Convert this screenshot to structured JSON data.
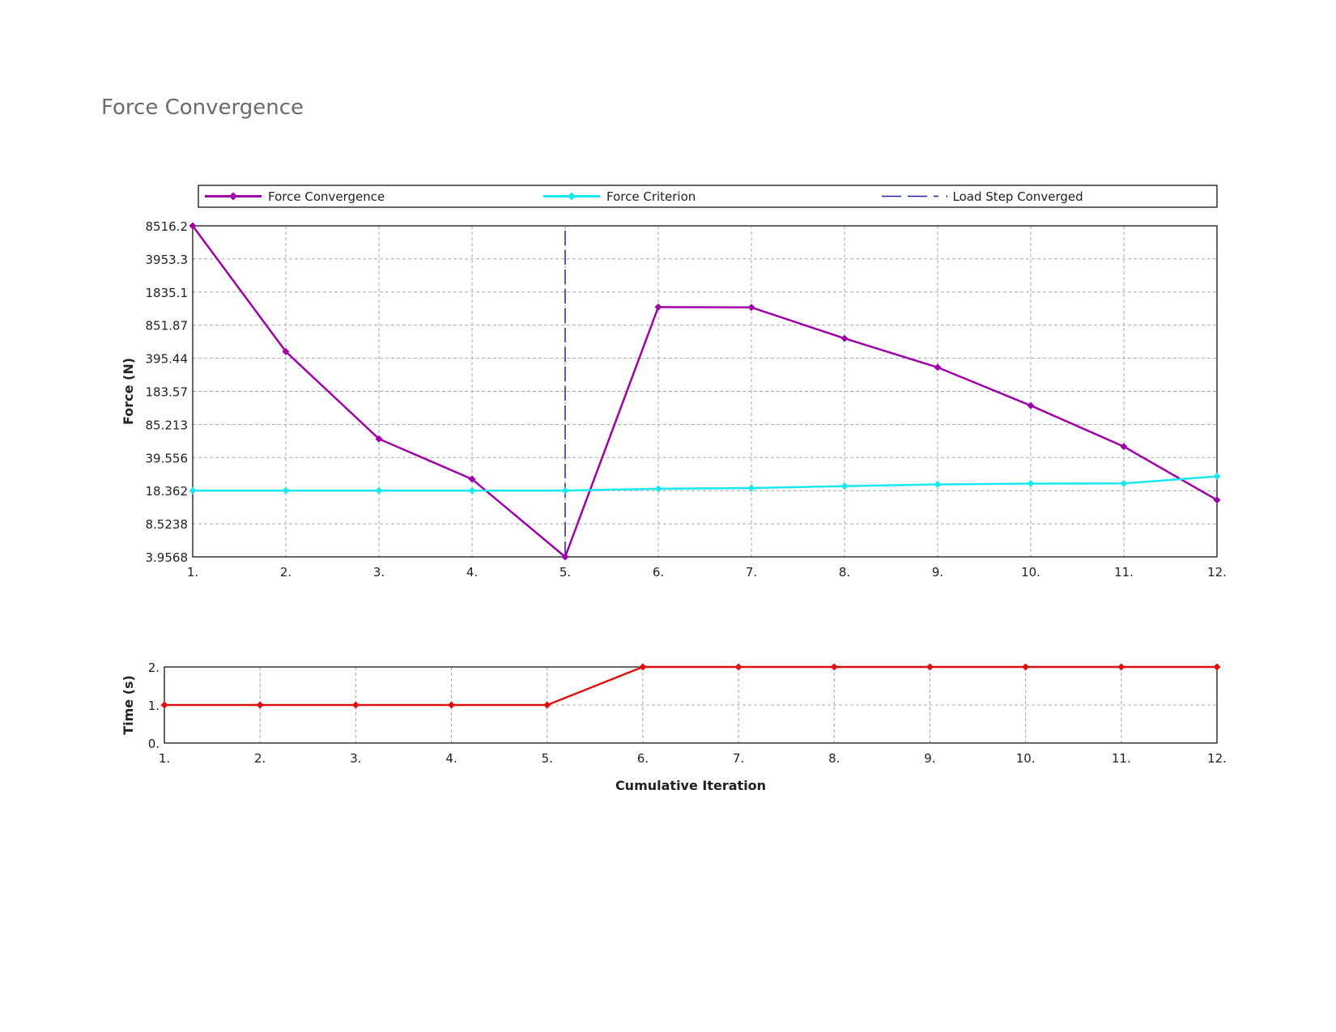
{
  "page": {
    "title": "Force Convergence"
  },
  "chart_data": [
    {
      "type": "line",
      "y_scale": "log",
      "ylabel": "Force (N)",
      "x": [
        1,
        2,
        3,
        4,
        5,
        6,
        7,
        8,
        9,
        10,
        11,
        12
      ],
      "x_tick_labels": [
        "1.",
        "2.",
        "3.",
        "4.",
        "5.",
        "6.",
        "7.",
        "8.",
        "9.",
        "10.",
        "11.",
        "12."
      ],
      "y_tick_labels": [
        "8516.2",
        "3953.3",
        "1835.1",
        "851.87",
        "395.44",
        "183.57",
        "85.213",
        "39.556",
        "18.362",
        "8.5238",
        "3.9568"
      ],
      "y_ticks": [
        8516.2,
        3953.3,
        1835.1,
        851.87,
        395.44,
        183.57,
        85.213,
        39.556,
        18.362,
        8.5238,
        3.9568
      ],
      "ylim": [
        3.9568,
        8516.2
      ],
      "xlim": [
        1,
        12
      ],
      "grid": true,
      "legend": "top",
      "series": [
        {
          "name": "Force Convergence",
          "color": "#a000a8",
          "values": [
            8516.2,
            461,
            61,
            24,
            3.9568,
            1295,
            1285,
            626,
            320,
            132,
            51,
            14.8
          ]
        },
        {
          "name": "Force Criterion",
          "color": "#19e8ee",
          "values": [
            18.4,
            18.4,
            18.4,
            18.4,
            18.4,
            19.2,
            19.5,
            20.4,
            21.2,
            21.6,
            21.7,
            25.6
          ]
        }
      ],
      "annotations": [
        {
          "name": "Load Step Converged",
          "color": "#2020a0",
          "style": "dashed",
          "x": 5
        }
      ]
    },
    {
      "type": "line",
      "ylabel": "Time (s)",
      "xlabel": "Cumulative Iteration",
      "x": [
        1,
        2,
        3,
        4,
        5,
        6,
        7,
        8,
        9,
        10,
        11,
        12
      ],
      "x_tick_labels": [
        "1.",
        "2.",
        "3.",
        "4.",
        "5.",
        "6.",
        "7.",
        "8.",
        "9.",
        "10.",
        "11.",
        "12."
      ],
      "y_tick_labels": [
        "2.",
        "1.",
        "0."
      ],
      "y_ticks": [
        2,
        1,
        0
      ],
      "ylim": [
        0,
        2
      ],
      "xlim": [
        1,
        12
      ],
      "grid": true,
      "series": [
        {
          "color": "#e01010",
          "values": [
            1,
            1,
            1,
            1,
            1,
            2,
            2,
            2,
            2,
            2,
            2,
            2
          ]
        }
      ]
    }
  ]
}
